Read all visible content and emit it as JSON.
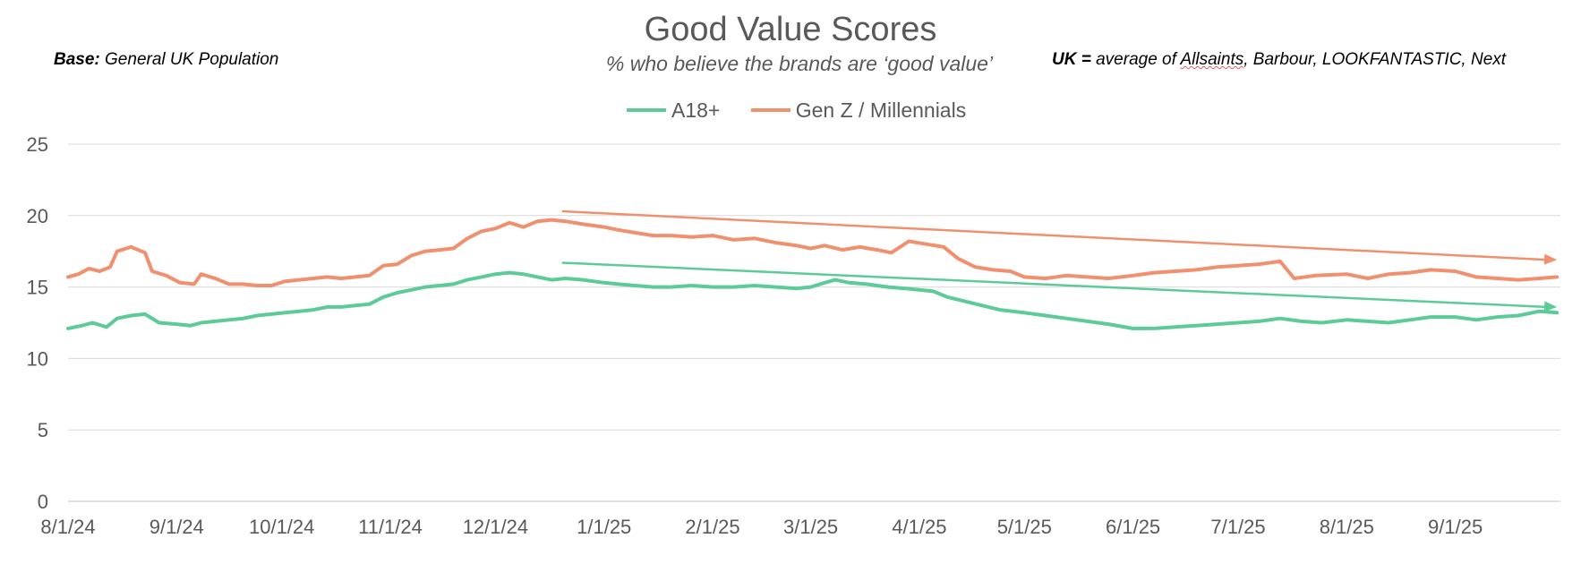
{
  "chart_data": {
    "type": "line",
    "title": "Good Value Scores",
    "subtitle": "% who believe the brands are ‘good value’",
    "notes": {
      "base_label": "Base:",
      "base_text": "General UK Population",
      "uk_label": "UK =",
      "uk_text_pre": "average of ",
      "uk_text_brand": "Allsaints",
      "uk_text_post": ", Barbour, LOOKFANTASTIC, Next"
    },
    "x_ticks": [
      "8/1/24",
      "9/1/24",
      "10/1/24",
      "11/1/24",
      "12/1/24",
      "1/1/25",
      "2/1/25",
      "3/1/25",
      "4/1/25",
      "5/1/25",
      "6/1/25",
      "7/1/25",
      "8/1/25",
      "9/1/25"
    ],
    "xlim": [
      "2024-08-01",
      "2025-10-01"
    ],
    "y_ticks": [
      0,
      5,
      10,
      15,
      20,
      25
    ],
    "ylim": [
      0,
      25
    ],
    "grid": true,
    "legend_position": "top",
    "series": [
      {
        "name": "A18+",
        "color": "#5DCB98",
        "points": [
          [
            "2024-08-01",
            12.1
          ],
          [
            "2024-08-05",
            12.3
          ],
          [
            "2024-08-08",
            12.5
          ],
          [
            "2024-08-12",
            12.2
          ],
          [
            "2024-08-15",
            12.8
          ],
          [
            "2024-08-19",
            13.0
          ],
          [
            "2024-08-23",
            13.1
          ],
          [
            "2024-08-27",
            12.5
          ],
          [
            "2024-09-01",
            12.4
          ],
          [
            "2024-09-05",
            12.3
          ],
          [
            "2024-09-08",
            12.5
          ],
          [
            "2024-09-12",
            12.6
          ],
          [
            "2024-09-16",
            12.7
          ],
          [
            "2024-09-20",
            12.8
          ],
          [
            "2024-09-24",
            13.0
          ],
          [
            "2024-09-28",
            13.1
          ],
          [
            "2024-10-02",
            13.2
          ],
          [
            "2024-10-06",
            13.3
          ],
          [
            "2024-10-10",
            13.4
          ],
          [
            "2024-10-14",
            13.6
          ],
          [
            "2024-10-18",
            13.6
          ],
          [
            "2024-10-22",
            13.7
          ],
          [
            "2024-10-26",
            13.8
          ],
          [
            "2024-10-30",
            14.3
          ],
          [
            "2024-11-03",
            14.6
          ],
          [
            "2024-11-07",
            14.8
          ],
          [
            "2024-11-11",
            15.0
          ],
          [
            "2024-11-15",
            15.1
          ],
          [
            "2024-11-19",
            15.2
          ],
          [
            "2024-11-23",
            15.5
          ],
          [
            "2024-11-27",
            15.7
          ],
          [
            "2024-12-01",
            15.9
          ],
          [
            "2024-12-05",
            16.0
          ],
          [
            "2024-12-09",
            15.9
          ],
          [
            "2024-12-13",
            15.7
          ],
          [
            "2024-12-17",
            15.5
          ],
          [
            "2024-12-21",
            15.6
          ],
          [
            "2024-12-26",
            15.5
          ],
          [
            "2025-01-01",
            15.3
          ],
          [
            "2025-01-05",
            15.2
          ],
          [
            "2025-01-10",
            15.1
          ],
          [
            "2025-01-15",
            15.0
          ],
          [
            "2025-01-20",
            15.0
          ],
          [
            "2025-01-26",
            15.1
          ],
          [
            "2025-02-01",
            15.0
          ],
          [
            "2025-02-07",
            15.0
          ],
          [
            "2025-02-13",
            15.1
          ],
          [
            "2025-02-19",
            15.0
          ],
          [
            "2025-02-25",
            14.9
          ],
          [
            "2025-03-01",
            15.0
          ],
          [
            "2025-03-05",
            15.3
          ],
          [
            "2025-03-08",
            15.5
          ],
          [
            "2025-03-12",
            15.3
          ],
          [
            "2025-03-17",
            15.2
          ],
          [
            "2025-03-23",
            15.0
          ],
          [
            "2025-03-28",
            14.9
          ],
          [
            "2025-04-01",
            14.8
          ],
          [
            "2025-04-05",
            14.7
          ],
          [
            "2025-04-09",
            14.3
          ],
          [
            "2025-04-14",
            14.0
          ],
          [
            "2025-04-19",
            13.7
          ],
          [
            "2025-04-24",
            13.4
          ],
          [
            "2025-05-01",
            13.2
          ],
          [
            "2025-05-07",
            13.0
          ],
          [
            "2025-05-13",
            12.8
          ],
          [
            "2025-05-19",
            12.6
          ],
          [
            "2025-05-25",
            12.4
          ],
          [
            "2025-06-01",
            12.1
          ],
          [
            "2025-06-07",
            12.1
          ],
          [
            "2025-06-13",
            12.2
          ],
          [
            "2025-06-19",
            12.3
          ],
          [
            "2025-06-25",
            12.4
          ],
          [
            "2025-07-01",
            12.5
          ],
          [
            "2025-07-07",
            12.6
          ],
          [
            "2025-07-13",
            12.8
          ],
          [
            "2025-07-19",
            12.6
          ],
          [
            "2025-07-25",
            12.5
          ],
          [
            "2025-08-01",
            12.7
          ],
          [
            "2025-08-07",
            12.6
          ],
          [
            "2025-08-13",
            12.5
          ],
          [
            "2025-08-19",
            12.7
          ],
          [
            "2025-08-25",
            12.9
          ],
          [
            "2025-09-01",
            12.9
          ],
          [
            "2025-09-07",
            12.7
          ],
          [
            "2025-09-13",
            12.9
          ],
          [
            "2025-09-19",
            13.0
          ],
          [
            "2025-09-25",
            13.3
          ],
          [
            "2025-09-30",
            13.2
          ]
        ]
      },
      {
        "name": "Gen Z / Millennials",
        "color": "#F0906E",
        "points": [
          [
            "2024-08-01",
            15.7
          ],
          [
            "2024-08-04",
            15.9
          ],
          [
            "2024-08-07",
            16.3
          ],
          [
            "2024-08-10",
            16.1
          ],
          [
            "2024-08-13",
            16.4
          ],
          [
            "2024-08-15",
            17.5
          ],
          [
            "2024-08-19",
            17.8
          ],
          [
            "2024-08-23",
            17.4
          ],
          [
            "2024-08-25",
            16.1
          ],
          [
            "2024-08-29",
            15.8
          ],
          [
            "2024-09-02",
            15.3
          ],
          [
            "2024-09-06",
            15.2
          ],
          [
            "2024-09-08",
            15.9
          ],
          [
            "2024-09-12",
            15.6
          ],
          [
            "2024-09-16",
            15.2
          ],
          [
            "2024-09-20",
            15.2
          ],
          [
            "2024-09-24",
            15.1
          ],
          [
            "2024-09-28",
            15.1
          ],
          [
            "2024-10-02",
            15.4
          ],
          [
            "2024-10-06",
            15.5
          ],
          [
            "2024-10-10",
            15.6
          ],
          [
            "2024-10-14",
            15.7
          ],
          [
            "2024-10-18",
            15.6
          ],
          [
            "2024-10-22",
            15.7
          ],
          [
            "2024-10-26",
            15.8
          ],
          [
            "2024-10-30",
            16.5
          ],
          [
            "2024-11-03",
            16.6
          ],
          [
            "2024-11-07",
            17.2
          ],
          [
            "2024-11-11",
            17.5
          ],
          [
            "2024-11-15",
            17.6
          ],
          [
            "2024-11-19",
            17.7
          ],
          [
            "2024-11-23",
            18.4
          ],
          [
            "2024-11-27",
            18.9
          ],
          [
            "2024-12-01",
            19.1
          ],
          [
            "2024-12-05",
            19.5
          ],
          [
            "2024-12-09",
            19.2
          ],
          [
            "2024-12-13",
            19.6
          ],
          [
            "2024-12-17",
            19.7
          ],
          [
            "2024-12-21",
            19.6
          ],
          [
            "2024-12-26",
            19.4
          ],
          [
            "2025-01-01",
            19.2
          ],
          [
            "2025-01-05",
            19.0
          ],
          [
            "2025-01-10",
            18.8
          ],
          [
            "2025-01-15",
            18.6
          ],
          [
            "2025-01-20",
            18.6
          ],
          [
            "2025-01-26",
            18.5
          ],
          [
            "2025-02-01",
            18.6
          ],
          [
            "2025-02-07",
            18.3
          ],
          [
            "2025-02-13",
            18.4
          ],
          [
            "2025-02-19",
            18.1
          ],
          [
            "2025-02-25",
            17.9
          ],
          [
            "2025-03-01",
            17.7
          ],
          [
            "2025-03-05",
            17.9
          ],
          [
            "2025-03-10",
            17.6
          ],
          [
            "2025-03-15",
            17.8
          ],
          [
            "2025-03-20",
            17.6
          ],
          [
            "2025-03-24",
            17.4
          ],
          [
            "2025-03-29",
            18.2
          ],
          [
            "2025-04-03",
            18.0
          ],
          [
            "2025-04-08",
            17.8
          ],
          [
            "2025-04-12",
            17.0
          ],
          [
            "2025-04-17",
            16.4
          ],
          [
            "2025-04-22",
            16.2
          ],
          [
            "2025-04-27",
            16.1
          ],
          [
            "2025-05-01",
            15.7
          ],
          [
            "2025-05-07",
            15.6
          ],
          [
            "2025-05-13",
            15.8
          ],
          [
            "2025-05-19",
            15.7
          ],
          [
            "2025-05-25",
            15.6
          ],
          [
            "2025-06-01",
            15.8
          ],
          [
            "2025-06-07",
            16.0
          ],
          [
            "2025-06-13",
            16.1
          ],
          [
            "2025-06-19",
            16.2
          ],
          [
            "2025-06-25",
            16.4
          ],
          [
            "2025-07-01",
            16.5
          ],
          [
            "2025-07-07",
            16.6
          ],
          [
            "2025-07-13",
            16.8
          ],
          [
            "2025-07-17",
            15.6
          ],
          [
            "2025-07-23",
            15.8
          ],
          [
            "2025-08-01",
            15.9
          ],
          [
            "2025-08-07",
            15.6
          ],
          [
            "2025-08-13",
            15.9
          ],
          [
            "2025-08-19",
            16.0
          ],
          [
            "2025-08-25",
            16.2
          ],
          [
            "2025-09-01",
            16.1
          ],
          [
            "2025-09-07",
            15.7
          ],
          [
            "2025-09-13",
            15.6
          ],
          [
            "2025-09-19",
            15.5
          ],
          [
            "2025-09-25",
            15.6
          ],
          [
            "2025-09-30",
            15.7
          ]
        ]
      }
    ],
    "annotations": [
      {
        "type": "trend-arrow",
        "series": "Gen Z / Millennials",
        "from": [
          "2024-12-20",
          20.3
        ],
        "to": [
          "2025-09-30",
          16.9
        ]
      },
      {
        "type": "trend-arrow",
        "series": "A18+",
        "from": [
          "2024-12-20",
          16.7
        ],
        "to": [
          "2025-09-30",
          13.6
        ]
      }
    ]
  }
}
